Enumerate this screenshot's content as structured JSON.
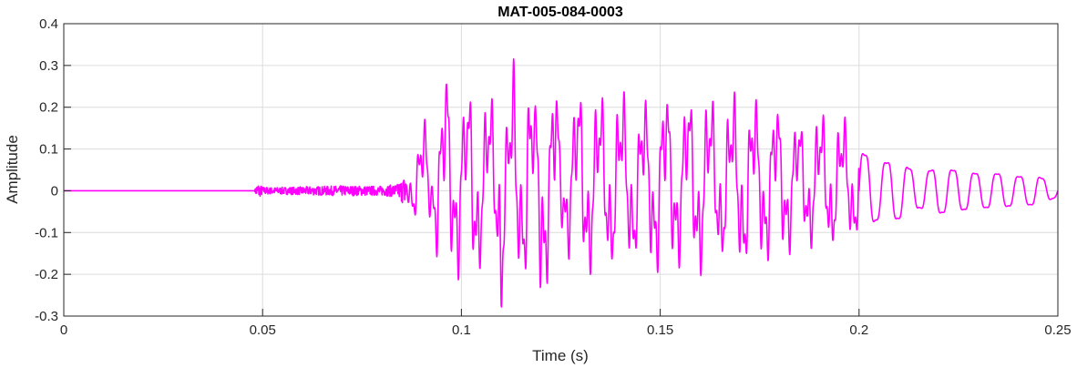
{
  "chart_data": {
    "type": "line",
    "title": "MAT-005-084-0003",
    "xlabel": "Time (s)",
    "ylabel": "Amplitude",
    "xlim": [
      0,
      0.25
    ],
    "ylim": [
      -0.3,
      0.4
    ],
    "grid": true,
    "legend": "none",
    "xticks": [
      0,
      0.05,
      0.1,
      0.15,
      0.2,
      0.25
    ],
    "xtick_labels": [
      "0",
      "0.05",
      "0.1",
      "0.15",
      "0.2",
      "0.25"
    ],
    "yticks": [
      -0.3,
      -0.2,
      -0.1,
      0,
      0.1,
      0.2,
      0.3,
      0.4
    ],
    "ytick_labels": [
      "-0.3",
      "-0.2",
      "-0.1",
      "0",
      "0.1",
      "0.2",
      "0.3",
      "0.4"
    ],
    "series": [
      {
        "color": "#ff00ff",
        "description_points": {
          "x": [
            0,
            0.048,
            0.0485,
            0.049,
            0.05,
            0.052,
            0.06,
            0.07,
            0.08,
            0.084,
            0.086,
            0.088,
            0.0895,
            0.091,
            0.0925,
            0.094,
            0.0952,
            0.0965,
            0.098,
            0.0995,
            0.101,
            0.103,
            0.105,
            0.107,
            0.109,
            0.11,
            0.1115,
            0.1135,
            0.115,
            0.117,
            0.1185,
            0.12,
            0.122,
            0.1235,
            0.125,
            0.13,
            0.135,
            0.14,
            0.145,
            0.15,
            0.155,
            0.16,
            0.165,
            0.17,
            0.175,
            0.18,
            0.185,
            0.19,
            0.195,
            0.2,
            0.205,
            0.21,
            0.215,
            0.22,
            0.225,
            0.23,
            0.235,
            0.24,
            0.245,
            0.25
          ],
          "y": [
            0,
            0,
            0.022,
            -0.022,
            0.012,
            -0.01,
            0.012,
            -0.015,
            0.014,
            0.02,
            0.05,
            0.09,
            -0.12,
            0.16,
            -0.08,
            0.2,
            -0.2,
            0.3,
            -0.18,
            0.24,
            -0.19,
            0.27,
            -0.2,
            0.22,
            -0.19,
            0.36,
            -0.16,
            0.32,
            -0.19,
            0.31,
            -0.18,
            0.33,
            -0.23,
            0.27,
            -0.14,
            0.24,
            -0.21,
            0.22,
            -0.19,
            0.23,
            -0.2,
            0.23,
            -0.19,
            0.22,
            -0.2,
            0.19,
            -0.15,
            0.17,
            -0.16,
            0.14,
            -0.1,
            0.1,
            -0.06,
            0.08,
            -0.07,
            0.06,
            -0.06,
            0.05,
            -0.05,
            -0.02
          ]
        }
      }
    ]
  }
}
